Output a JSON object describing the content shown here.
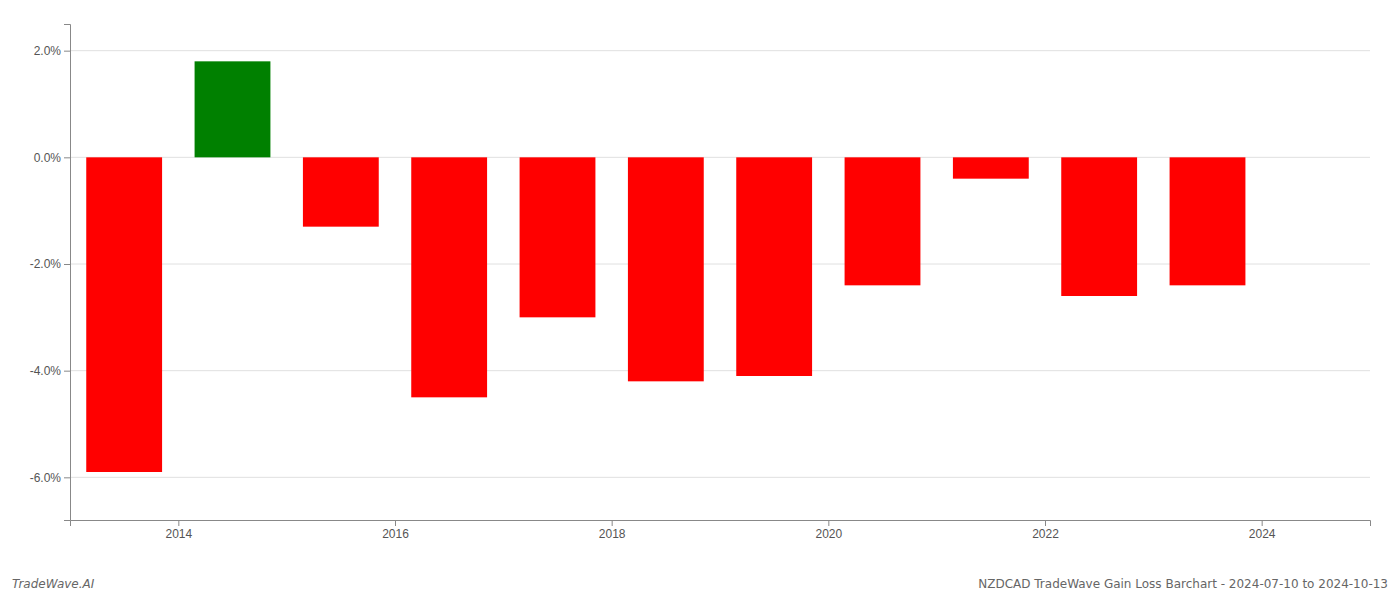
{
  "chart_data": {
    "type": "bar",
    "x": [
      2013.5,
      2014.5,
      2015.5,
      2016.5,
      2017.5,
      2018.5,
      2019.5,
      2020.5,
      2021.5,
      2022.5,
      2023.5
    ],
    "values": [
      -0.059,
      0.018,
      -0.013,
      -0.045,
      -0.03,
      -0.042,
      -0.041,
      -0.024,
      -0.004,
      -0.026,
      -0.024
    ],
    "colors": [
      "red",
      "green",
      "red",
      "red",
      "red",
      "red",
      "red",
      "red",
      "red",
      "red",
      "red"
    ],
    "xlim": [
      2013.0,
      2025.0
    ],
    "xticks": [
      2014,
      2016,
      2018,
      2020,
      2022,
      2024
    ],
    "ylim": [
      -0.068,
      0.025
    ],
    "yticks": [
      {
        "value": -0.06,
        "label": "-6.0%"
      },
      {
        "value": -0.04,
        "label": "-4.0%"
      },
      {
        "value": -0.02,
        "label": "-2.0%"
      },
      {
        "value": 0.0,
        "label": "0.0%"
      },
      {
        "value": 0.02,
        "label": "2.0%"
      }
    ],
    "grid": true,
    "annotations": [
      "TradeWave.AI",
      "NZDCAD TradeWave Gain Loss Barchart - 2024-07-10 to 2024-10-13"
    ]
  }
}
